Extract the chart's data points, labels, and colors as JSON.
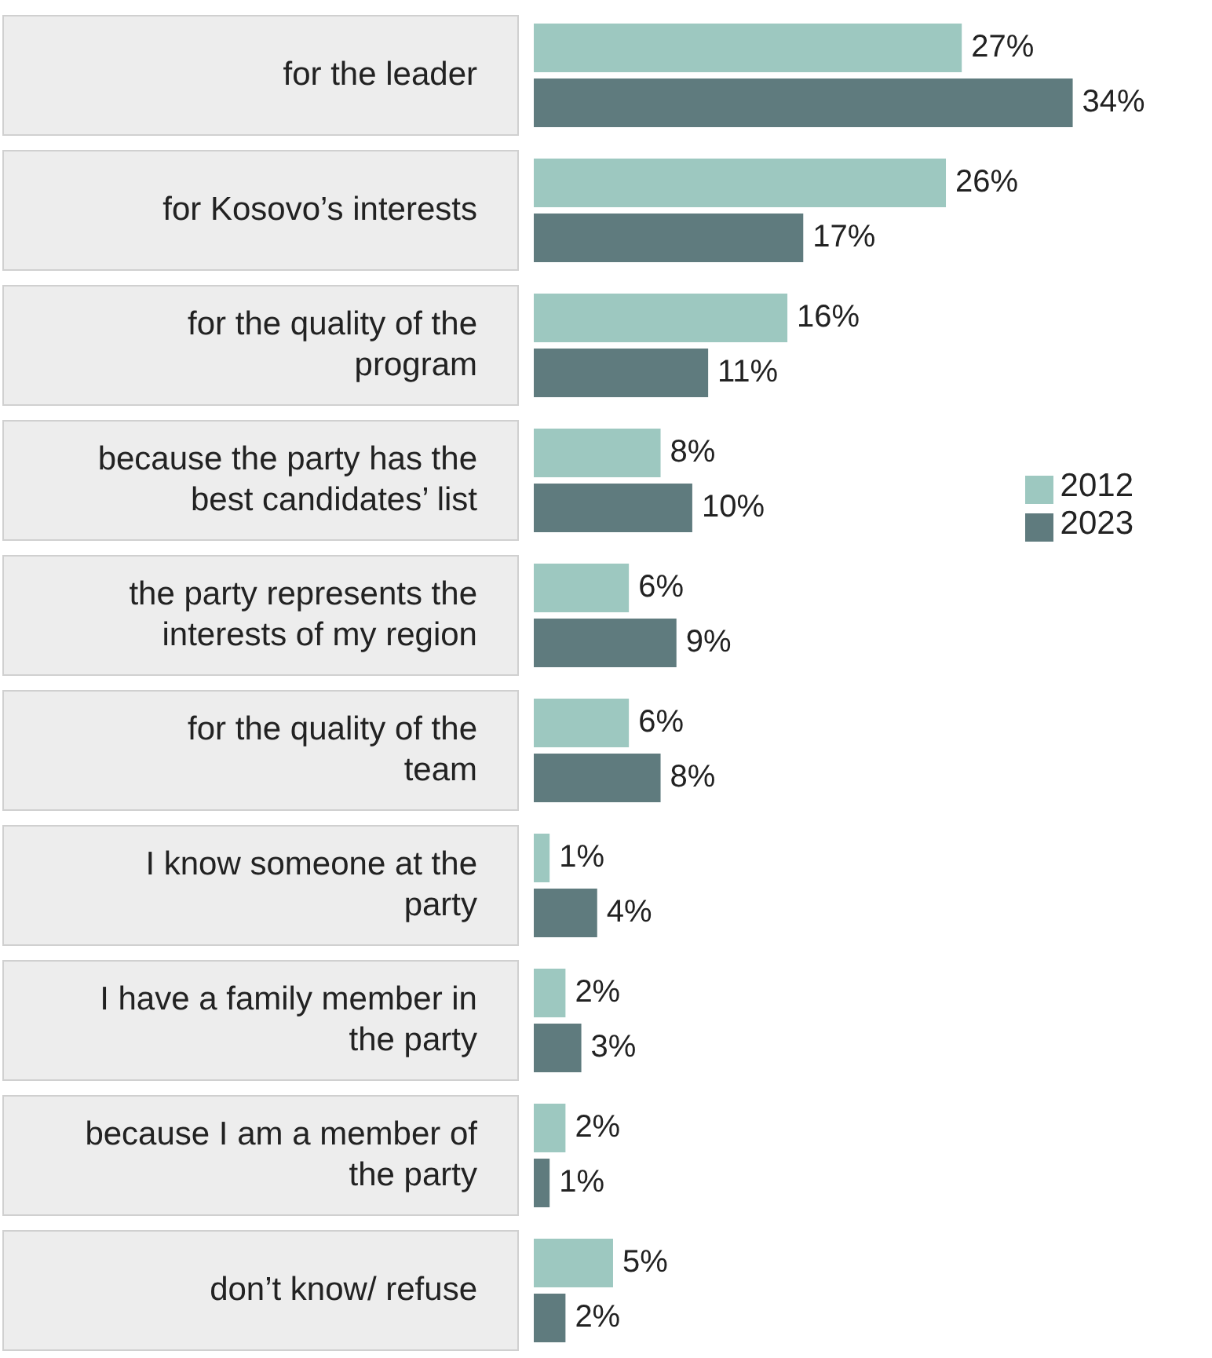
{
  "chart_data": {
    "type": "bar",
    "orientation": "horizontal",
    "legend": "right",
    "categories": [
      "for the leader",
      "for Kosovo’s interests",
      "for the quality of the program",
      "because the party has the best candidates’ list",
      "the party represents the interests of my region",
      "for the quality of the team",
      "I know someone at the party",
      "I have a family member in the party",
      "because I am a member of the party",
      "don’t know/ refuse"
    ],
    "series": [
      {
        "name": "2012",
        "color": "#9dc8c0",
        "values": [
          27,
          26,
          16,
          8,
          6,
          6,
          1,
          2,
          2,
          5
        ],
        "value_labels": [
          "27%",
          "26%",
          "16%",
          "8%",
          "6%",
          "6%",
          "1%",
          "2%",
          "2%",
          "5%"
        ]
      },
      {
        "name": "2023",
        "color": "#5f7b7e",
        "values": [
          34,
          17,
          11,
          10,
          9,
          8,
          4,
          3,
          1,
          2
        ],
        "value_labels": [
          "34%",
          "17%",
          "11%",
          "10%",
          "9%",
          "8%",
          "4%",
          "3%",
          "1%",
          "2%"
        ]
      }
    ]
  }
}
